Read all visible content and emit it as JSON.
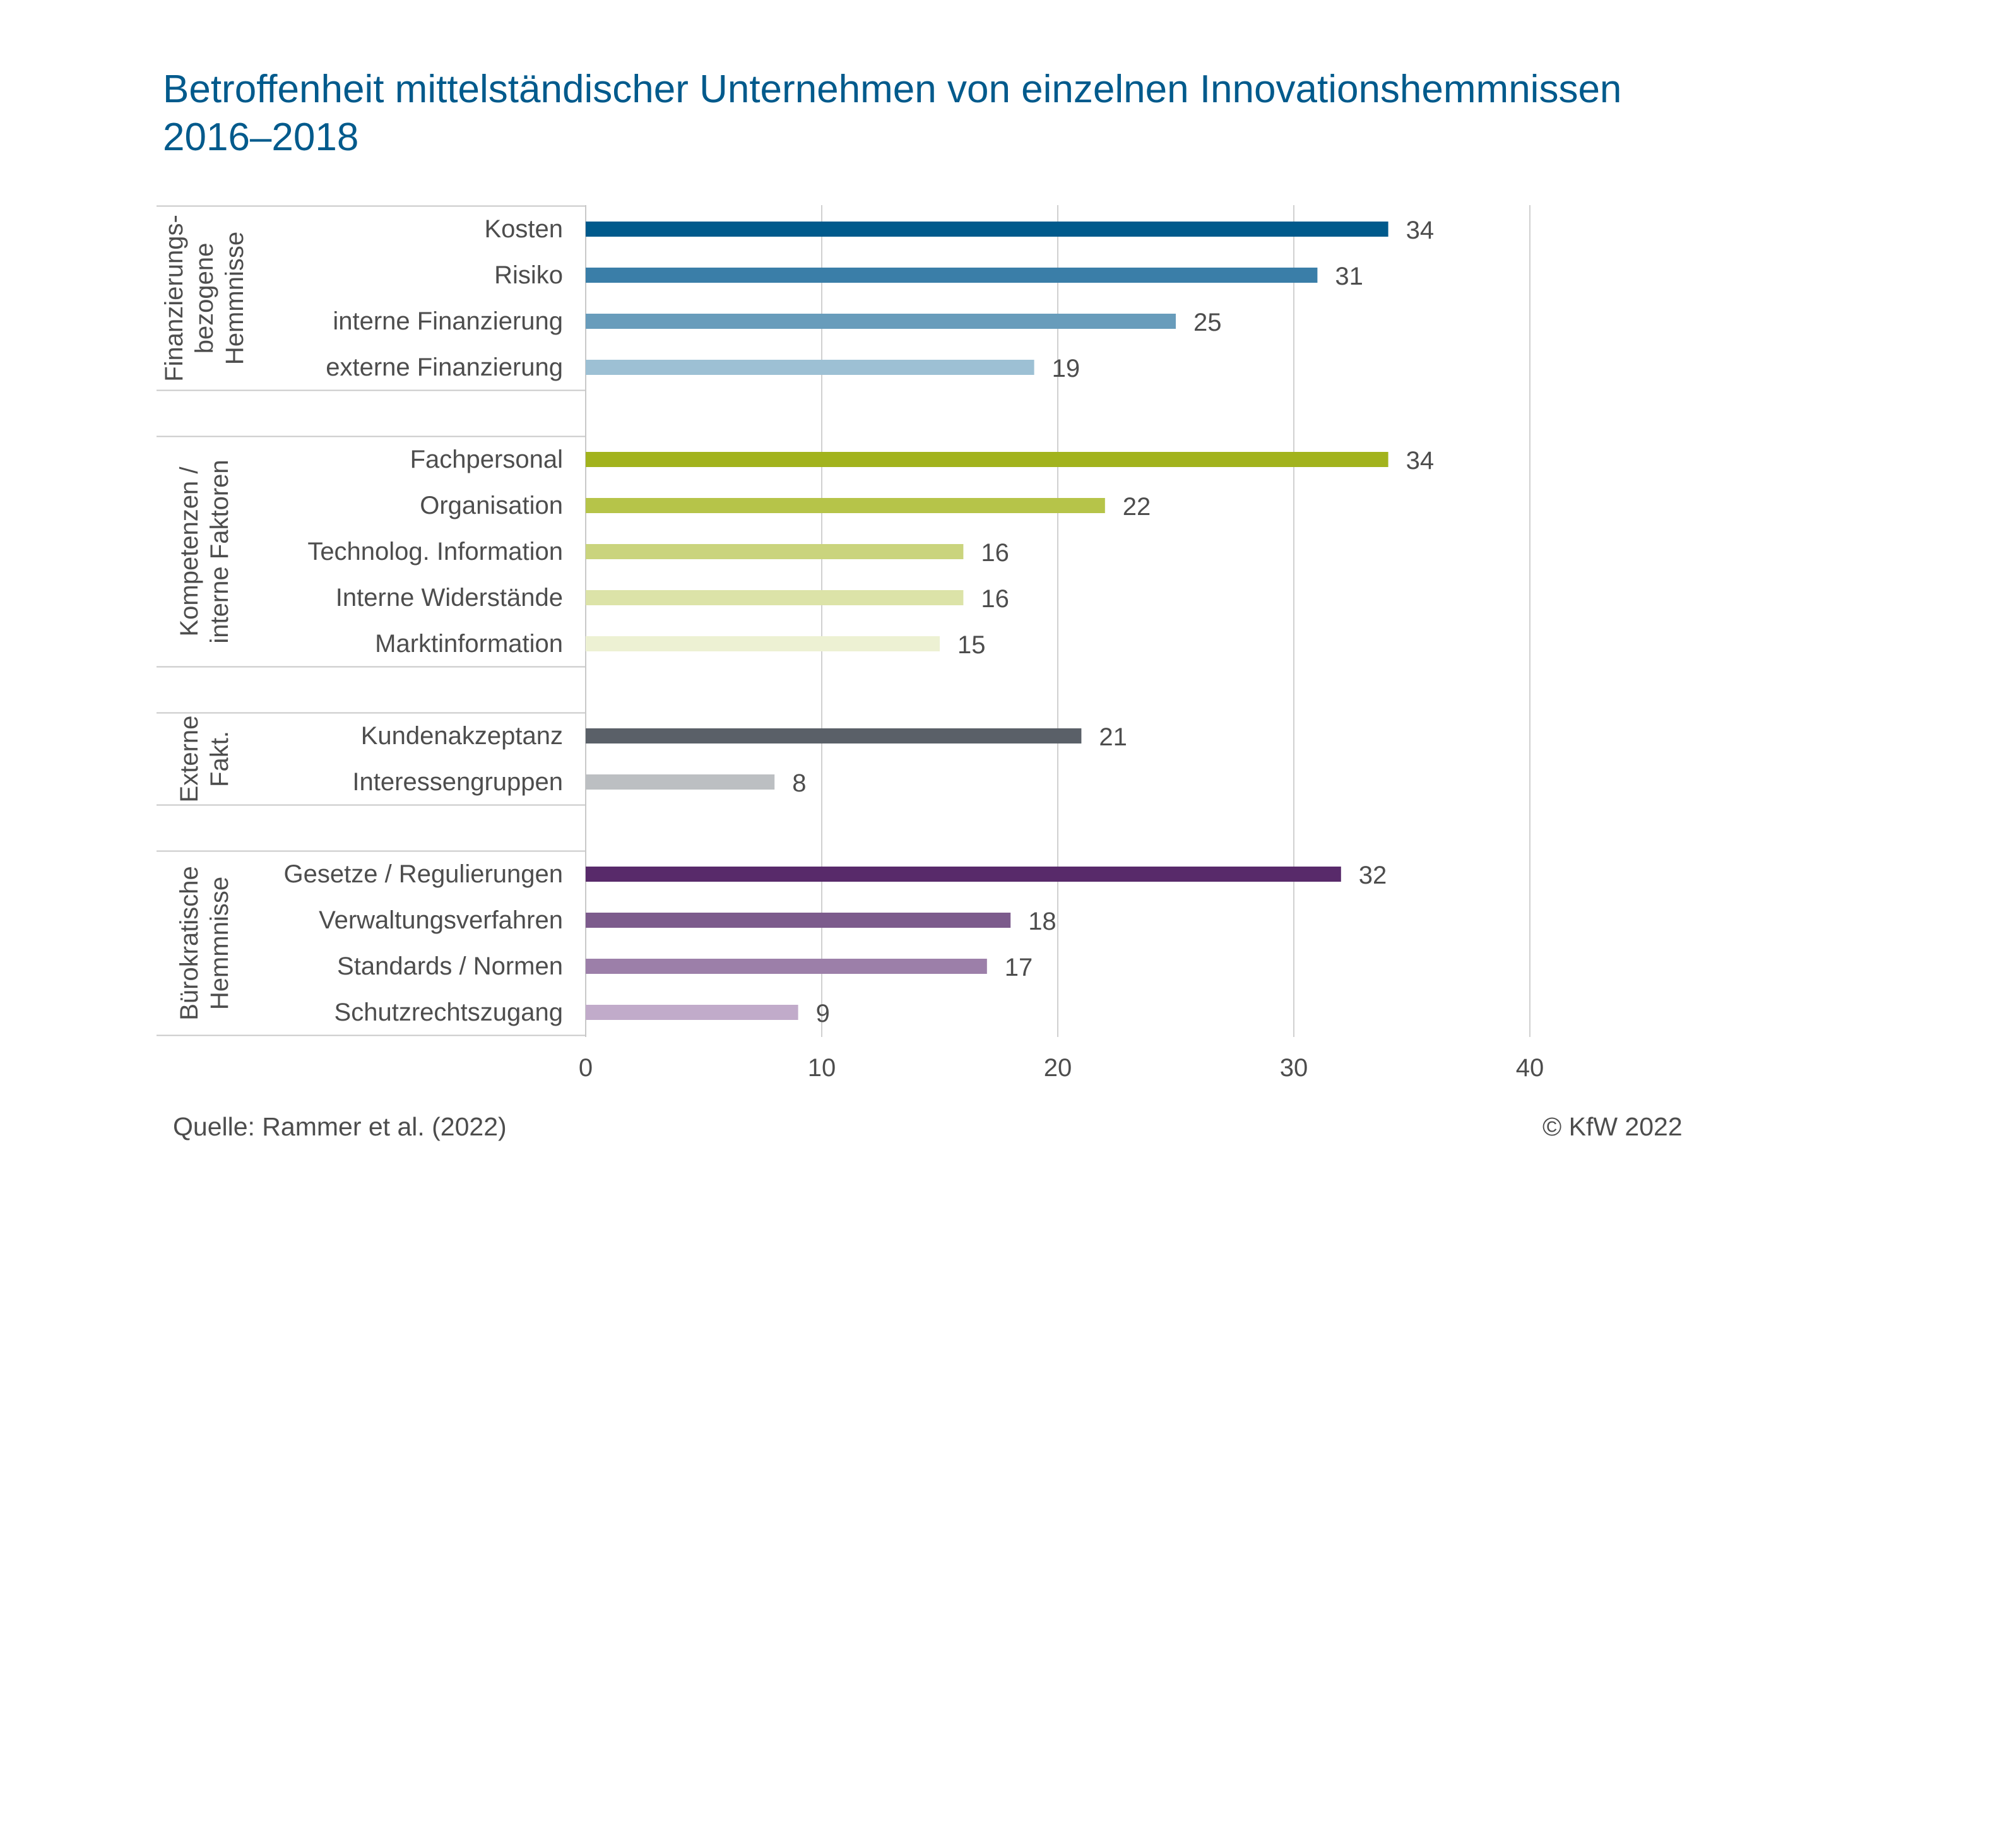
{
  "title": {
    "line1": "Betroffenheit mittelständischer Unternehmen von einzelnen Innovationshemmnissen",
    "line2": "2016–2018"
  },
  "footer": {
    "source": "Quelle: Rammer et al. (2022)",
    "copyright": "©  KfW 2022"
  },
  "chart_data": {
    "type": "bar",
    "orientation": "horizontal",
    "title": "Betroffenheit mittelständischer Unternehmen von einzelnen Innovationshemmnissen 2016–2018",
    "xlim": [
      0,
      40
    ],
    "xticks": [
      0,
      10,
      20,
      30,
      40
    ],
    "grid": true,
    "groups": [
      {
        "name": "Finanzierungs- bezogene Hemmnisse",
        "label_lines": [
          "Finanzierungs-",
          "bezogene",
          "Hemmnisse"
        ],
        "items": [
          {
            "label": "Kosten",
            "value": 34,
            "color": "#005a8c"
          },
          {
            "label": "Risiko",
            "value": 31,
            "color": "#3a7ea8"
          },
          {
            "label": "interne Finanzierung",
            "value": 25,
            "color": "#689cbb"
          },
          {
            "label": "externe Finanzierung",
            "value": 19,
            "color": "#9dc0d4"
          }
        ]
      },
      {
        "name": "Kompetenzen / interne Faktoren",
        "label_lines": [
          "Kompetenzen /",
          "interne Faktoren"
        ],
        "items": [
          {
            "label": "Fachpersonal",
            "value": 34,
            "color": "#a2b31d"
          },
          {
            "label": "Organisation",
            "value": 22,
            "color": "#b6c449"
          },
          {
            "label": "Technolog. Information",
            "value": 16,
            "color": "#cad47d"
          },
          {
            "label": "Interne Widerstände",
            "value": 16,
            "color": "#dce3a8"
          },
          {
            "label": "Marktinformation",
            "value": 15,
            "color": "#edf1d3"
          }
        ]
      },
      {
        "name": "Externe Fakt.",
        "label_lines": [
          "Externe",
          "Fakt."
        ],
        "items": [
          {
            "label": "Kundenakzeptanz",
            "value": 21,
            "color": "#5a6068"
          },
          {
            "label": "Interessengruppen",
            "value": 8,
            "color": "#bcbfc2"
          }
        ]
      },
      {
        "name": "Bürokratische Hemmnisse",
        "label_lines": [
          "Bürokratische",
          "Hemmnisse"
        ],
        "items": [
          {
            "label": "Gesetze / Regulierungen",
            "value": 32,
            "color": "#582a6a"
          },
          {
            "label": "Verwaltungsverfahren",
            "value": 18,
            "color": "#7c5b8c"
          },
          {
            "label": "Standards / Normen",
            "value": 17,
            "color": "#9c7fa9"
          },
          {
            "label": "Schutzrechtszugang",
            "value": 9,
            "color": "#c1abca"
          }
        ]
      }
    ]
  }
}
